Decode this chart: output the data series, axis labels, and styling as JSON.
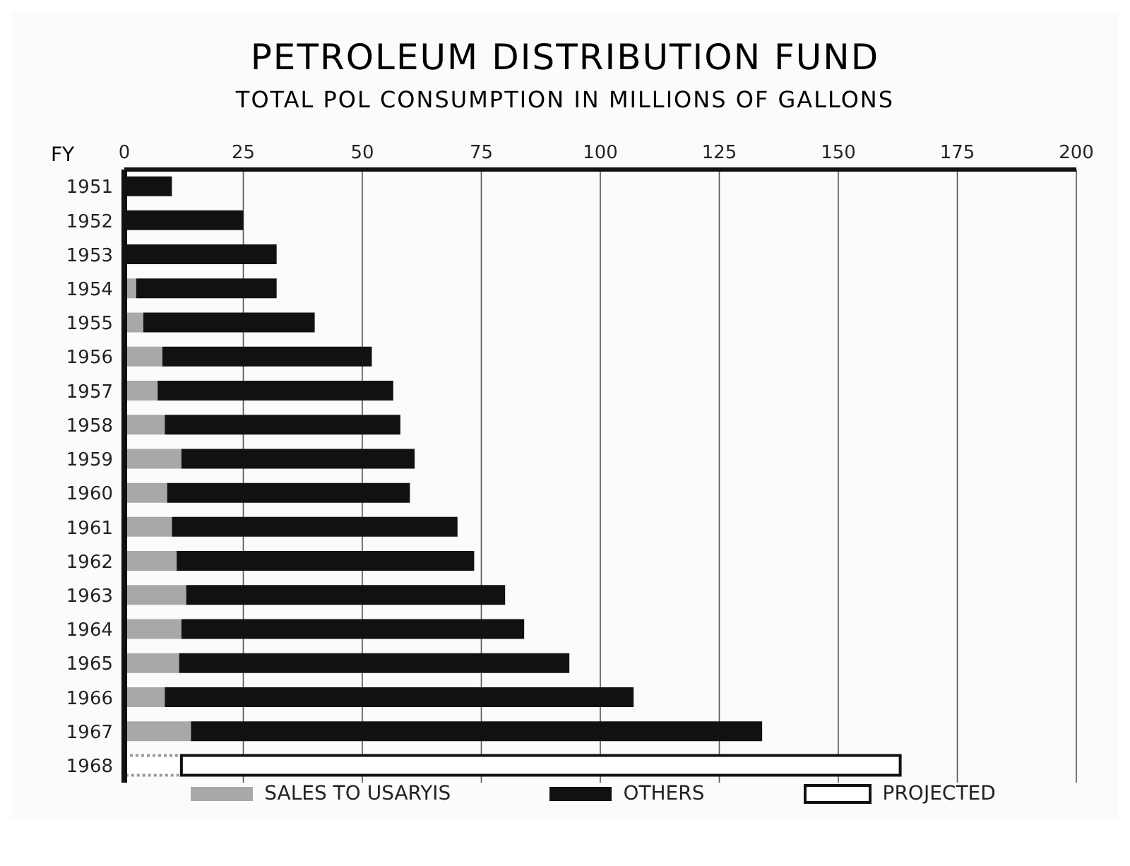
{
  "chart_data": {
    "type": "bar",
    "orientation": "horizontal",
    "stacked": true,
    "title": "PETROLEUM DISTRIBUTION FUND",
    "subtitle": "TOTAL POL CONSUMPTION IN MILLIONS OF GALLONS",
    "ylabel": "FY",
    "categories": [
      "1951",
      "1952",
      "1953",
      "1954",
      "1955",
      "1956",
      "1957",
      "1958",
      "1959",
      "1960",
      "1961",
      "1962",
      "1963",
      "1964",
      "1965",
      "1966",
      "1967",
      "1968"
    ],
    "series": [
      {
        "name": "SALES TO USARYIS",
        "color": "#a8a8a8",
        "values": [
          0,
          0,
          0,
          2.5,
          4,
          8,
          7,
          8.5,
          12,
          9,
          10,
          11,
          13,
          12,
          11.5,
          8.5,
          14,
          null
        ]
      },
      {
        "color": "#ffffff",
        "values": [
          null,
          null,
          null,
          null,
          null,
          null,
          null,
          null,
          null,
          null,
          null,
          null,
          null,
          null,
          null,
          null,
          null,
          12
        ]
      },
      {
        "name": "OTHERS",
        "color": "#111111",
        "values": [
          10,
          25,
          32,
          29.5,
          36,
          44,
          49.5,
          49.5,
          49,
          51,
          60,
          62.5,
          67,
          72,
          82,
          98.5,
          120,
          null
        ]
      },
      {
        "name": "PROJECTED",
        "color": "#ffffff",
        "values": [
          null,
          null,
          null,
          null,
          null,
          null,
          null,
          null,
          null,
          null,
          null,
          null,
          null,
          null,
          null,
          null,
          null,
          151
        ]
      }
    ],
    "xlim": [
      0,
      200
    ],
    "xticks": [
      0,
      25,
      50,
      75,
      100,
      125,
      150,
      175,
      200
    ],
    "grid": "x",
    "legend": "bottom"
  }
}
